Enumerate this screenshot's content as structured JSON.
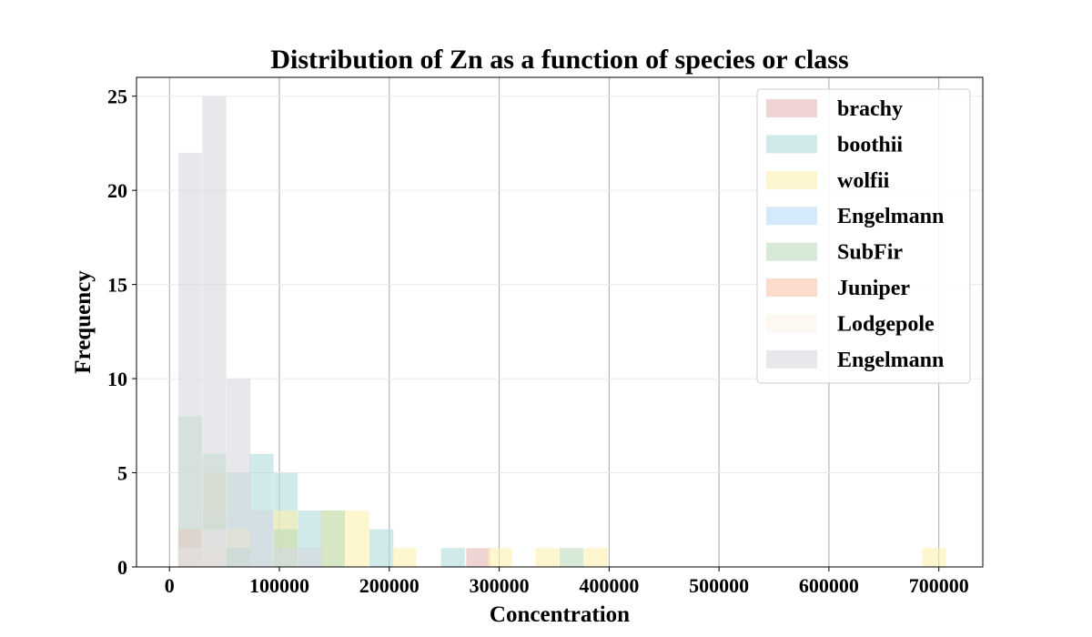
{
  "chart_data": {
    "type": "bar",
    "title": "Distribution of Zn as a function of species or class",
    "xlabel": "Concentration",
    "ylabel": "Frequency",
    "xlim": [
      -30000,
      740000
    ],
    "ylim": [
      0,
      26
    ],
    "xticks": [
      0,
      100000,
      200000,
      300000,
      400000,
      500000,
      600000,
      700000
    ],
    "yticks": [
      0,
      5,
      10,
      15,
      20,
      25
    ],
    "bin_width": 21700,
    "grid": "vertical major gridlines",
    "legend_position": "top-right",
    "series": [
      {
        "name": "brachy",
        "color": "#e6b8b7",
        "bins": [
          [
            8000,
            2
          ],
          [
            270000,
            1
          ]
        ]
      },
      {
        "name": "boothii",
        "color": "#b0dada",
        "bins": [
          [
            8000,
            1
          ],
          [
            30000,
            3
          ],
          [
            52000,
            5
          ],
          [
            73000,
            6
          ],
          [
            95000,
            5
          ],
          [
            117000,
            3
          ],
          [
            182000,
            2
          ],
          [
            247000,
            1
          ]
        ]
      },
      {
        "name": "wolfii",
        "color": "#fdf0ae",
        "bins": [
          [
            30000,
            5
          ],
          [
            52000,
            2
          ],
          [
            95000,
            3
          ],
          [
            138000,
            3
          ],
          [
            160000,
            3
          ],
          [
            203000,
            1
          ],
          [
            290000,
            1
          ],
          [
            333000,
            1
          ],
          [
            377000,
            1
          ],
          [
            685000,
            1
          ]
        ]
      },
      {
        "name": "Engelmann",
        "color": "#b8daf8",
        "bins": [
          [
            52000,
            1
          ]
        ]
      },
      {
        "name": "SubFir",
        "color": "#bcdcbc",
        "bins": [
          [
            8000,
            8
          ],
          [
            30000,
            6
          ],
          [
            52000,
            1
          ],
          [
            95000,
            2
          ],
          [
            138000,
            3
          ],
          [
            355000,
            1
          ]
        ]
      },
      {
        "name": "Juniper",
        "color": "#fcc3aa",
        "bins": [
          [
            8000,
            2
          ],
          [
            30000,
            1
          ]
        ]
      },
      {
        "name": "Lodgepole",
        "color": "#fdf4ea",
        "bins": [
          [
            8000,
            1
          ],
          [
            30000,
            2
          ]
        ]
      },
      {
        "name": "Engelmann",
        "color": "#d5d9e0",
        "bins": [
          [
            8000,
            22
          ],
          [
            30000,
            25
          ],
          [
            52000,
            10
          ],
          [
            73000,
            3
          ],
          [
            95000,
            1
          ],
          [
            117000,
            1
          ]
        ]
      }
    ]
  }
}
